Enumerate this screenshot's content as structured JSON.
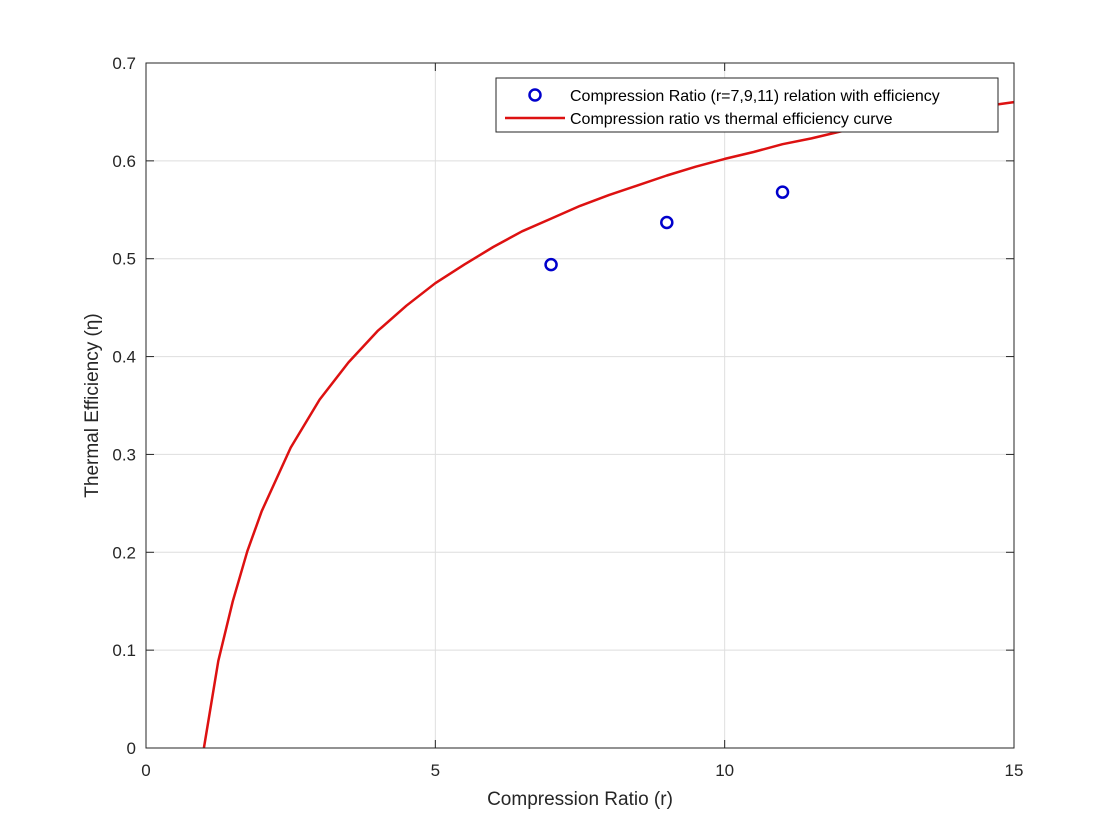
{
  "chart_data": {
    "type": "line",
    "title": "",
    "xlabel": "Compression Ratio (r)",
    "ylabel": "Thermal Efficiency (η)",
    "xlim": [
      0,
      15
    ],
    "ylim": [
      0,
      0.7
    ],
    "xticks": [
      0,
      5,
      10,
      15
    ],
    "xtick_labels": [
      "0",
      "5",
      "10",
      "15"
    ],
    "yticks": [
      0,
      0.1,
      0.2,
      0.3,
      0.4,
      0.5,
      0.6,
      0.7
    ],
    "ytick_labels": [
      "0",
      "0.1",
      "0.2",
      "0.3",
      "0.4",
      "0.5",
      "0.6",
      "0.7"
    ],
    "grid": true,
    "legend_position": "top-right",
    "series": [
      {
        "name": "Compression Ratio (r=7,9,11) relation with efficiency",
        "kind": "scatter",
        "marker": "circle",
        "color": "#0000cc",
        "x": [
          7,
          9,
          11
        ],
        "y": [
          0.494,
          0.537,
          0.568
        ]
      },
      {
        "name": "Compression ratio vs thermal efficiency curve",
        "kind": "line",
        "color": "#dd1111",
        "x": [
          1,
          1.25,
          1.5,
          1.75,
          2,
          2.5,
          3,
          3.5,
          4,
          4.5,
          5,
          5.5,
          6,
          6.5,
          7,
          7.5,
          8,
          8.5,
          9,
          9.5,
          10,
          10.5,
          11,
          11.5,
          12,
          12.5,
          13,
          13.5,
          14,
          14.5,
          15
        ],
        "y": [
          0,
          0.089,
          0.15,
          0.201,
          0.242,
          0.307,
          0.356,
          0.394,
          0.426,
          0.452,
          0.475,
          0.494,
          0.512,
          0.528,
          0.541,
          0.554,
          0.565,
          0.575,
          0.585,
          0.594,
          0.602,
          0.609,
          0.617,
          0.623,
          0.63,
          0.635,
          0.641,
          0.646,
          0.651,
          0.656,
          0.66
        ]
      }
    ]
  }
}
